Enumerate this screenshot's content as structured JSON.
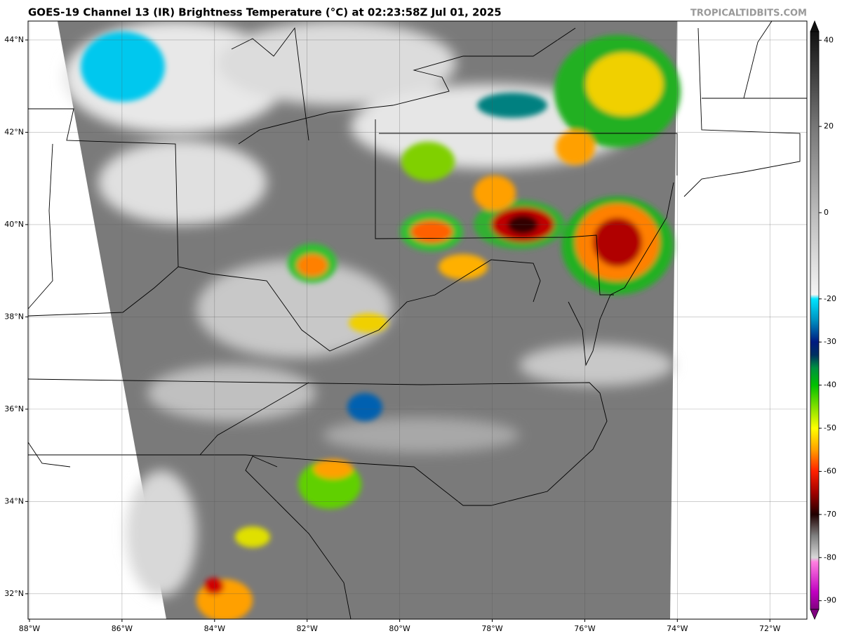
{
  "header": {
    "title": "GOES-19 Channel 13 (IR) Brightness Temperature (°C) at 02:23:58Z Jul 01, 2025",
    "credit": "TROPICALTIDBITS.COM"
  },
  "map": {
    "xlim": [
      -88.03,
      -71.2
    ],
    "ylim": [
      31.45,
      44.41
    ],
    "lon_ticks": [
      {
        "value": -88,
        "label": "88°W"
      },
      {
        "value": -86,
        "label": "86°W"
      },
      {
        "value": -84,
        "label": "84°W"
      },
      {
        "value": -82,
        "label": "82°W"
      },
      {
        "value": -80,
        "label": "80°W"
      },
      {
        "value": -78,
        "label": "78°W"
      },
      {
        "value": -76,
        "label": "76°W"
      },
      {
        "value": -74,
        "label": "74°W"
      },
      {
        "value": -72,
        "label": "72°W"
      }
    ],
    "lat_ticks": [
      {
        "value": 32,
        "label": "32°N"
      },
      {
        "value": 34,
        "label": "34°N"
      },
      {
        "value": 36,
        "label": "36°N"
      },
      {
        "value": 38,
        "label": "38°N"
      },
      {
        "value": 40,
        "label": "40°N"
      },
      {
        "value": 42,
        "label": "42°N"
      },
      {
        "value": 44,
        "label": "44°N"
      }
    ]
  },
  "colorbar": {
    "clim": [
      -92,
      42
    ],
    "ticks": [
      40,
      20,
      0,
      -20,
      -30,
      -40,
      -50,
      -60,
      -70,
      -80,
      -90
    ],
    "stops": [
      {
        "value": 42,
        "color": "#111111"
      },
      {
        "value": 20,
        "color": "#777777"
      },
      {
        "value": 0,
        "color": "#bbbbbb"
      },
      {
        "value": -19,
        "color": "#f4f4f4"
      },
      {
        "value": -20,
        "color": "#00e5ff"
      },
      {
        "value": -25,
        "color": "#0090c0"
      },
      {
        "value": -30,
        "color": "#001a80"
      },
      {
        "value": -33,
        "color": "#003060"
      },
      {
        "value": -36,
        "color": "#009040"
      },
      {
        "value": -40,
        "color": "#00c000"
      },
      {
        "value": -45,
        "color": "#80e000"
      },
      {
        "value": -50,
        "color": "#ffff00"
      },
      {
        "value": -55,
        "color": "#ffa000"
      },
      {
        "value": -60,
        "color": "#ff2000"
      },
      {
        "value": -65,
        "color": "#a00000"
      },
      {
        "value": -70,
        "color": "#200000"
      },
      {
        "value": -75,
        "color": "#808080"
      },
      {
        "value": -80,
        "color": "#d8d8d8"
      },
      {
        "value": -81,
        "color": "#ff80e0"
      },
      {
        "value": -88,
        "color": "#c000c0"
      },
      {
        "value": -92,
        "color": "#800080"
      }
    ]
  }
}
